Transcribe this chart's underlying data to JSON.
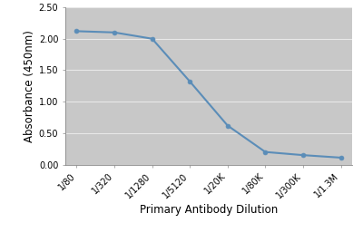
{
  "x_labels": [
    "1/80",
    "1/320",
    "1/1280",
    "1/5120",
    "1/20K",
    "1/80K",
    "1/300K",
    "1/1.3M"
  ],
  "y_values": [
    2.12,
    2.1,
    2.0,
    1.32,
    0.62,
    0.2,
    0.15,
    0.11
  ],
  "line_color": "#5b8db8",
  "marker": "o",
  "marker_size": 3.5,
  "xlabel": "Primary Antibody Dilution",
  "ylabel": "Absorbance (450nm)",
  "ylim": [
    0.0,
    2.5
  ],
  "yticks": [
    0.0,
    0.5,
    1.0,
    1.5,
    2.0,
    2.5
  ],
  "figure_bg_color": "#ffffff",
  "plot_bg_color": "#c8c8c8",
  "grid_color": "#e8e8e8",
  "xlabel_fontsize": 8.5,
  "ylabel_fontsize": 8.5,
  "tick_fontsize": 7,
  "line_width": 1.5
}
